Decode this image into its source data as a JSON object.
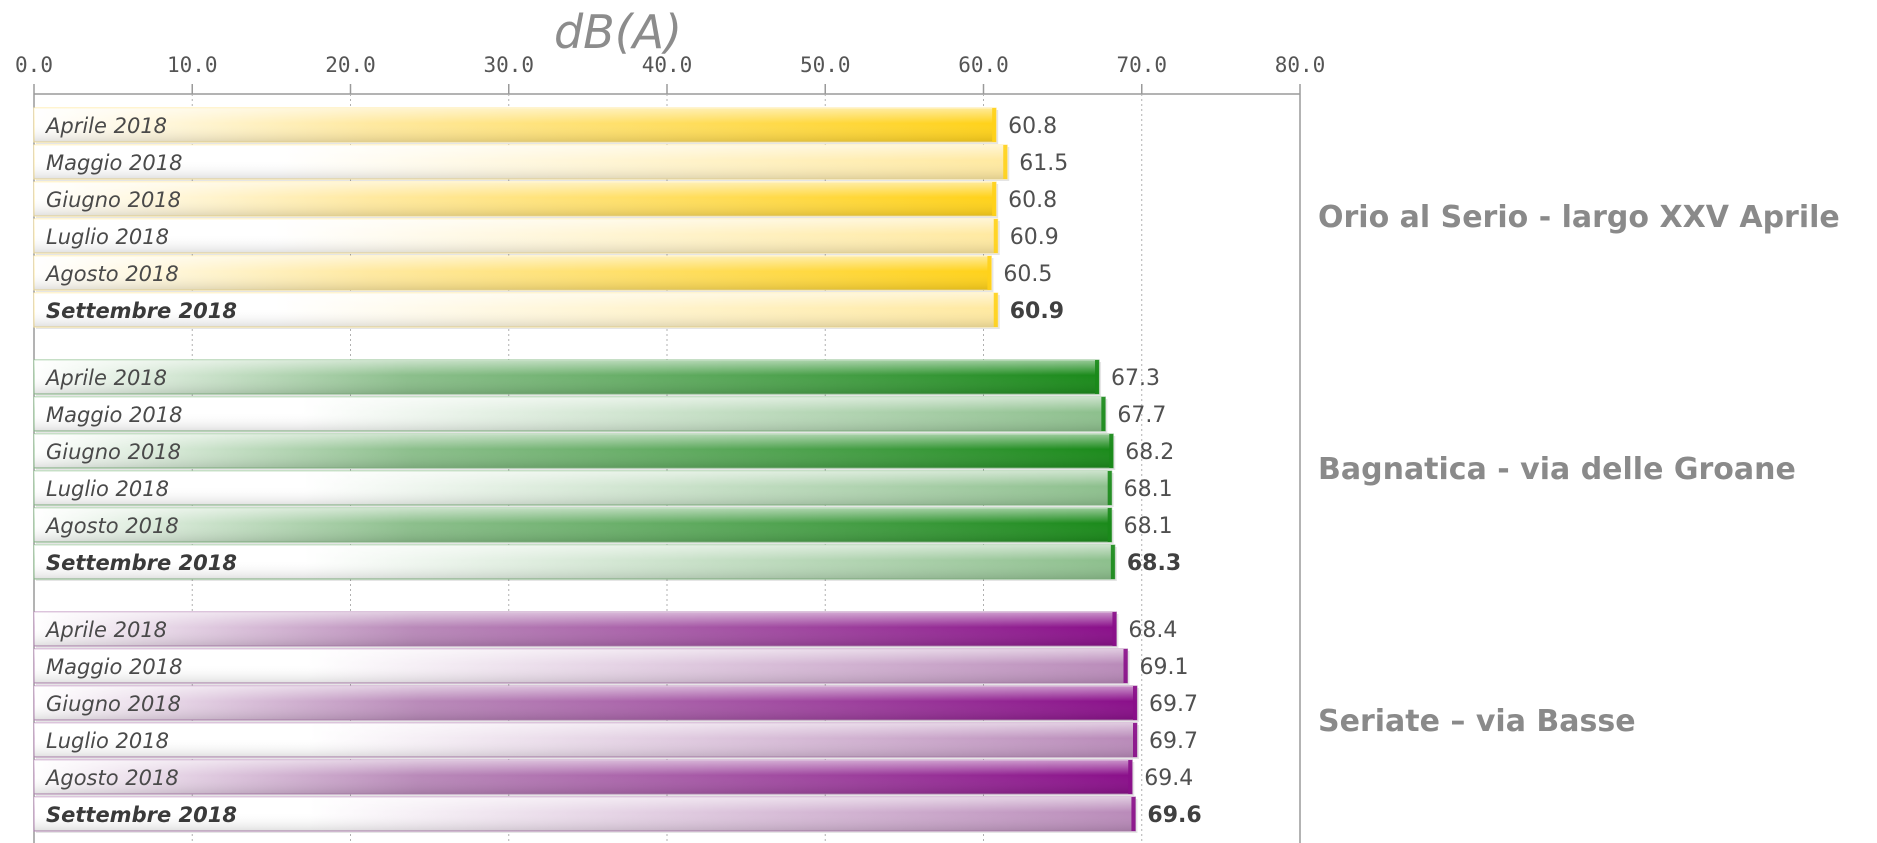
{
  "chart_data": {
    "type": "bar",
    "orientation": "horizontal",
    "xlabel": "dB(A)",
    "xlim": [
      0,
      80
    ],
    "x_ticks": [
      "0.0",
      "10.0",
      "20.0",
      "30.0",
      "40.0",
      "50.0",
      "60.0",
      "70.0",
      "80.0"
    ],
    "grid": true,
    "groups": [
      {
        "name": "Orio al Serio - largo XXV Aprile",
        "color_dark": "#ffd21a",
        "color_light": "#ffe9a0",
        "bars": [
          {
            "label": "Aprile 2018",
            "value": 60.8,
            "value_text": "60.8",
            "bold": false
          },
          {
            "label": "Maggio 2018",
            "value": 61.5,
            "value_text": "61.5",
            "bold": false
          },
          {
            "label": "Giugno 2018",
            "value": 60.8,
            "value_text": "60.8",
            "bold": false
          },
          {
            "label": "Luglio 2018",
            "value": 60.9,
            "value_text": "60.9",
            "bold": false
          },
          {
            "label": "Agosto 2018",
            "value": 60.5,
            "value_text": "60.5",
            "bold": false
          },
          {
            "label": "Settembre 2018",
            "value": 60.9,
            "value_text": "60.9",
            "bold": true
          }
        ]
      },
      {
        "name": "Bagnatica - via delle Groane",
        "color_dark": "#1a8a1a",
        "color_light": "#8cbf8c",
        "bars": [
          {
            "label": "Aprile 2018",
            "value": 67.3,
            "value_text": "67.3",
            "bold": false
          },
          {
            "label": "Maggio 2018",
            "value": 67.7,
            "value_text": "67.7",
            "bold": false
          },
          {
            "label": "Giugno 2018",
            "value": 68.2,
            "value_text": "68.2",
            "bold": false
          },
          {
            "label": "Luglio 2018",
            "value": 68.1,
            "value_text": "68.1",
            "bold": false
          },
          {
            "label": "Agosto 2018",
            "value": 68.1,
            "value_text": "68.1",
            "bold": false
          },
          {
            "label": "Settembre 2018",
            "value": 68.3,
            "value_text": "68.3",
            "bold": true
          }
        ]
      },
      {
        "name": "Seriate – via Basse",
        "color_dark": "#8a0f8a",
        "color_light": "#b98ab9",
        "bars": [
          {
            "label": "Aprile 2018",
            "value": 68.4,
            "value_text": "68.4",
            "bold": false
          },
          {
            "label": "Maggio 2018",
            "value": 69.1,
            "value_text": "69.1",
            "bold": false
          },
          {
            "label": "Giugno 2018",
            "value": 69.7,
            "value_text": "69.7",
            "bold": false
          },
          {
            "label": "Luglio 2018",
            "value": 69.7,
            "value_text": "69.7",
            "bold": false
          },
          {
            "label": "Agosto 2018",
            "value": 69.4,
            "value_text": "69.4",
            "bold": false
          },
          {
            "label": "Settembre 2018",
            "value": 69.6,
            "value_text": "69.6",
            "bold": true
          }
        ]
      }
    ]
  }
}
